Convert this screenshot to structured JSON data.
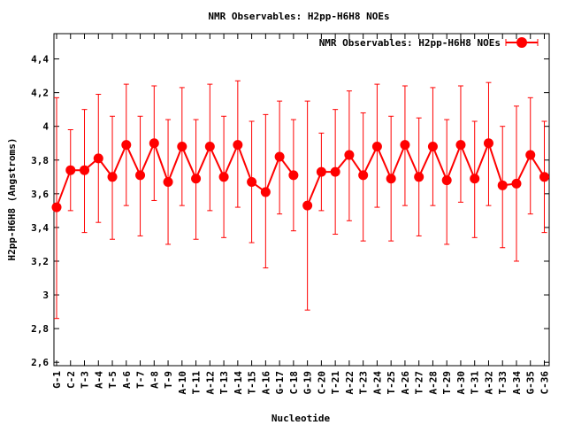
{
  "chart_data": {
    "type": "line",
    "title": "NMR Observables: H2pp-H6H8 NOEs",
    "xlabel": "Nucleotide",
    "ylabel": "H2pp-H6H8 (Angstroms)",
    "ylim": [
      2.58,
      4.55
    ],
    "yticks": [
      {
        "value": 2.6,
        "label": "2,6"
      },
      {
        "value": 2.8,
        "label": "2,8"
      },
      {
        "value": 3.0,
        "label": "3"
      },
      {
        "value": 3.2,
        "label": "3,2"
      },
      {
        "value": 3.4,
        "label": "3,4"
      },
      {
        "value": 3.6,
        "label": "3,6"
      },
      {
        "value": 3.8,
        "label": "3,8"
      },
      {
        "value": 4.0,
        "label": "4"
      },
      {
        "value": 4.2,
        "label": "4,2"
      },
      {
        "value": 4.4,
        "label": "4,4"
      }
    ],
    "legend": "top-right",
    "series": [
      {
        "name": "NMR Observables: H2pp-H6H8 NOEs",
        "color": "#ff0000",
        "segments": [
          {
            "categories": [
              "G-1",
              "C-2",
              "T-3",
              "A-4",
              "T-5",
              "A-6",
              "T-7",
              "A-8",
              "T-9",
              "A-10",
              "T-11",
              "A-12",
              "T-13",
              "A-14",
              "T-15",
              "A-16",
              "G-17",
              "C-18"
            ],
            "x": [
              1,
              2,
              3,
              4,
              5,
              6,
              7,
              8,
              9,
              10,
              11,
              12,
              13,
              14,
              15,
              16,
              17,
              18
            ],
            "values": [
              3.52,
              3.74,
              3.74,
              3.81,
              3.7,
              3.89,
              3.71,
              3.9,
              3.67,
              3.88,
              3.69,
              3.88,
              3.7,
              3.89,
              3.67,
              3.61,
              3.82,
              3.71
            ],
            "err_low": [
              2.86,
              3.5,
              3.37,
              3.43,
              3.33,
              3.53,
              3.35,
              3.56,
              3.3,
              3.53,
              3.33,
              3.5,
              3.34,
              3.52,
              3.31,
              3.16,
              3.48,
              3.38
            ],
            "err_high": [
              4.17,
              3.98,
              4.1,
              4.19,
              4.06,
              4.25,
              4.06,
              4.24,
              4.04,
              4.23,
              4.04,
              4.25,
              4.06,
              4.27,
              4.03,
              4.07,
              4.15,
              4.04
            ]
          },
          {
            "categories": [
              "G-19",
              "C-20",
              "T-21",
              "A-22",
              "T-23",
              "A-24",
              "T-25",
              "A-26",
              "T-27",
              "A-28",
              "T-29",
              "A-30",
              "T-31",
              "A-32",
              "T-33",
              "A-34",
              "G-35",
              "C-36"
            ],
            "x": [
              19,
              20,
              21,
              22,
              23,
              24,
              25,
              26,
              27,
              28,
              29,
              30,
              31,
              32,
              33,
              34,
              35,
              36
            ],
            "values": [
              3.53,
              3.73,
              3.73,
              3.83,
              3.71,
              3.88,
              3.69,
              3.89,
              3.7,
              3.88,
              3.68,
              3.89,
              3.69,
              3.9,
              3.65,
              3.66,
              3.83,
              3.7
            ],
            "err_low": [
              2.91,
              3.5,
              3.36,
              3.44,
              3.32,
              3.52,
              3.32,
              3.53,
              3.35,
              3.53,
              3.3,
              3.55,
              3.34,
              3.53,
              3.28,
              3.2,
              3.48,
              3.37
            ],
            "err_high": [
              4.15,
              3.96,
              4.1,
              4.21,
              4.08,
              4.25,
              4.06,
              4.24,
              4.05,
              4.23,
              4.04,
              4.24,
              4.03,
              4.26,
              4.0,
              4.12,
              4.17,
              4.03
            ]
          }
        ]
      }
    ]
  }
}
